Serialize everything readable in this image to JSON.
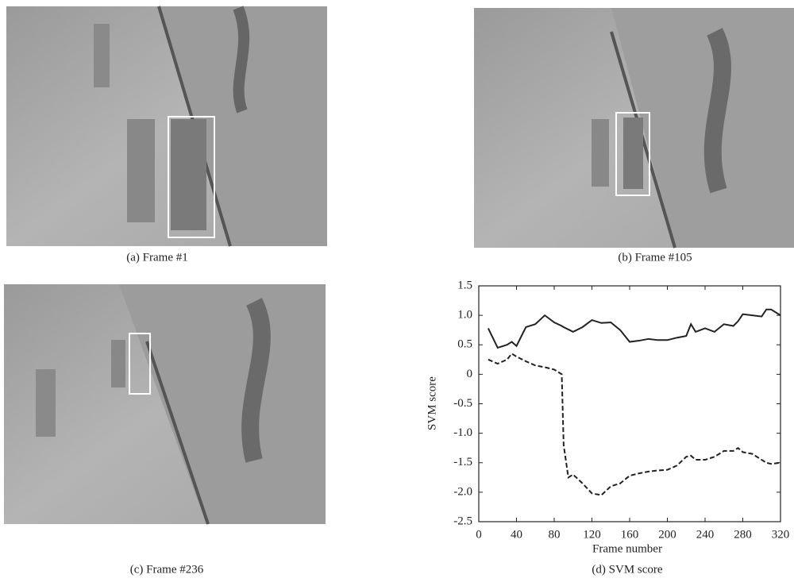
{
  "panels": [
    {
      "caption": "(a) Frame #1"
    },
    {
      "caption": "(b) Frame #105"
    },
    {
      "caption": "(c) Frame #236"
    }
  ],
  "chart_data": {
    "type": "line",
    "caption": "(d) SVM score",
    "xlabel": "Frame number",
    "ylabel": "SVM score",
    "x": [
      10,
      20,
      30,
      35,
      40,
      50,
      60,
      70,
      80,
      88,
      90,
      95,
      100,
      110,
      120,
      130,
      140,
      150,
      160,
      170,
      180,
      190,
      200,
      210,
      220,
      225,
      230,
      240,
      250,
      260,
      270,
      275,
      280,
      290,
      300,
      305,
      310,
      320
    ],
    "series": [
      {
        "color": "#222222",
        "style": "solid",
        "values": [
          0.78,
          0.45,
          0.5,
          0.55,
          0.48,
          0.8,
          0.85,
          1.0,
          0.88,
          0.82,
          0.8,
          0.76,
          0.72,
          0.8,
          0.92,
          0.87,
          0.88,
          0.75,
          0.55,
          0.57,
          0.6,
          0.58,
          0.58,
          0.62,
          0.65,
          0.85,
          0.72,
          0.78,
          0.72,
          0.85,
          0.82,
          0.9,
          1.02,
          1.0,
          0.98,
          1.1,
          1.1,
          1.0
        ]
      },
      {
        "color": "#222222",
        "style": "dashed",
        "values": [
          0.25,
          0.18,
          0.25,
          0.35,
          0.3,
          0.22,
          0.15,
          0.12,
          0.08,
          0.0,
          -1.2,
          -1.75,
          -1.7,
          -1.85,
          -2.02,
          -2.05,
          -1.9,
          -1.85,
          -1.72,
          -1.68,
          -1.65,
          -1.63,
          -1.62,
          -1.55,
          -1.4,
          -1.38,
          -1.45,
          -1.45,
          -1.4,
          -1.3,
          -1.3,
          -1.25,
          -1.32,
          -1.35,
          -1.45,
          -1.5,
          -1.52,
          -1.5
        ]
      }
    ],
    "xlim": [
      0,
      320
    ],
    "xticks": [
      0,
      40,
      80,
      120,
      160,
      200,
      240,
      280,
      320
    ],
    "ylim": [
      -2.5,
      1.5
    ],
    "yticks": [
      1.5,
      {
        "value": 1,
        "label": "1.0"
      },
      0.5,
      0,
      -0.5,
      {
        "value": -1,
        "label": "-1.0"
      },
      -1.5,
      {
        "value": -2,
        "label": "-2.0"
      },
      -2.5
    ]
  }
}
